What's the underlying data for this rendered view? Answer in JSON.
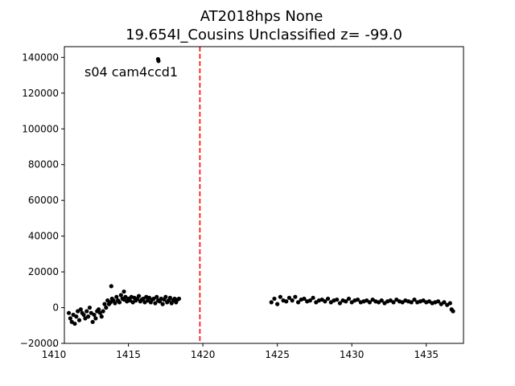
{
  "chart_data": {
    "type": "scatter",
    "title": "AT2018hps  None",
    "subtitle": "19.654I_Cousins Unclassified z= -99.0",
    "annotation": "s04 cam4ccd1",
    "xlabel": "",
    "ylabel": "",
    "xlim": [
      1410.7,
      1437.5
    ],
    "ylim": [
      -20000,
      146000
    ],
    "xticks": [
      1410,
      1415,
      1420,
      1425,
      1430,
      1435
    ],
    "xtick_labels": [
      "1410",
      "1415",
      "1420",
      "1425",
      "1430",
      "1435"
    ],
    "yticks": [
      -20000,
      0,
      20000,
      40000,
      60000,
      80000,
      100000,
      120000,
      140000
    ],
    "ytick_labels": [
      "−20000",
      "0",
      "20000",
      "40000",
      "60000",
      "80000",
      "100000",
      "120000",
      "140000"
    ],
    "grid": false,
    "vline": {
      "x": 1419.8,
      "color": "#ff0000",
      "style": "dashed"
    },
    "marker_color": "#000000",
    "series": [
      {
        "x": [
          1411.0,
          1411.1,
          1411.2,
          1411.3,
          1411.4,
          1411.5,
          1411.6,
          1411.7,
          1411.8,
          1411.9,
          1412.0,
          1412.1,
          1412.2,
          1412.3,
          1412.4,
          1412.5,
          1412.6,
          1412.7,
          1412.8,
          1412.9,
          1413.0,
          1413.1,
          1413.2,
          1413.3,
          1413.4,
          1413.5,
          1413.6,
          1413.7,
          1413.8,
          1413.9,
          1414.0,
          1414.1,
          1414.2,
          1414.3,
          1414.4,
          1414.5,
          1414.6,
          1414.7,
          1414.8,
          1414.9,
          1415.0,
          1415.1,
          1415.2,
          1415.3,
          1415.4,
          1415.5,
          1415.6,
          1415.7,
          1415.8,
          1415.9,
          1416.0,
          1416.1,
          1416.2,
          1416.3,
          1416.4,
          1416.5,
          1416.6,
          1416.7,
          1416.8,
          1416.9,
          1417.0,
          1417.1,
          1417.2,
          1417.3,
          1417.4,
          1417.5,
          1417.6,
          1417.7,
          1417.8,
          1417.9,
          1418.0,
          1418.1,
          1418.2,
          1418.3,
          1418.4,
          1416.99,
          1417.02,
          1413.85,
          1414.7
        ],
        "y": [
          -3000,
          -6000,
          -8000,
          -4000,
          -9000,
          -5000,
          -2000,
          -7000,
          -1000,
          -3000,
          -4000,
          -6000,
          -2000,
          -5000,
          0,
          -3000,
          -8000,
          -4000,
          -6000,
          -2000,
          -1000,
          -3000,
          -5000,
          -2000,
          2000,
          0,
          4000,
          2000,
          3000,
          5000,
          4000,
          2500,
          6000,
          4000,
          3000,
          7000,
          5000,
          4500,
          6000,
          3500,
          5000,
          4000,
          6000,
          3000,
          5500,
          4000,
          5000,
          6500,
          3500,
          4500,
          5000,
          3000,
          6000,
          4000,
          5500,
          3000,
          4500,
          5000,
          2500,
          6000,
          4000,
          3500,
          5000,
          2000,
          4500,
          6000,
          3000,
          4000,
          5500,
          2500,
          4000,
          5000,
          3000,
          4500,
          5000,
          139000,
          138000,
          12000,
          9000
        ]
      },
      {
        "x": [
          1424.6,
          1424.8,
          1425.0,
          1425.2,
          1425.4,
          1425.6,
          1425.8,
          1426.0,
          1426.2,
          1426.4,
          1426.6,
          1426.8,
          1427.0,
          1427.2,
          1427.4,
          1427.6,
          1427.8,
          1428.0,
          1428.2,
          1428.4,
          1428.6,
          1428.8,
          1429.0,
          1429.2,
          1429.4,
          1429.6,
          1429.8,
          1430.0,
          1430.2,
          1430.4,
          1430.6,
          1430.8,
          1431.0,
          1431.2,
          1431.4,
          1431.6,
          1431.8,
          1432.0,
          1432.2,
          1432.4,
          1432.6,
          1432.8,
          1433.0,
          1433.2,
          1433.4,
          1433.6,
          1433.8,
          1434.0,
          1434.2,
          1434.4,
          1434.6,
          1434.8,
          1435.0,
          1435.2,
          1435.4,
          1435.6,
          1435.8,
          1436.0,
          1436.2,
          1436.4,
          1436.6,
          1436.7,
          1436.8
        ],
        "y": [
          3000,
          5000,
          2000,
          6000,
          4000,
          3500,
          5500,
          4000,
          6000,
          3000,
          4500,
          5000,
          3500,
          4000,
          5500,
          3000,
          4000,
          4500,
          3500,
          5000,
          3000,
          4000,
          4500,
          2500,
          4000,
          3500,
          5000,
          3000,
          4000,
          4500,
          3000,
          3500,
          4000,
          3000,
          4500,
          3500,
          3000,
          4000,
          2500,
          3500,
          4000,
          3000,
          4500,
          3500,
          3000,
          4000,
          3500,
          3000,
          4500,
          3000,
          3500,
          4000,
          3000,
          3500,
          2500,
          3000,
          3500,
          2000,
          3000,
          1500,
          2500,
          -1000,
          -2000
        ]
      }
    ]
  }
}
